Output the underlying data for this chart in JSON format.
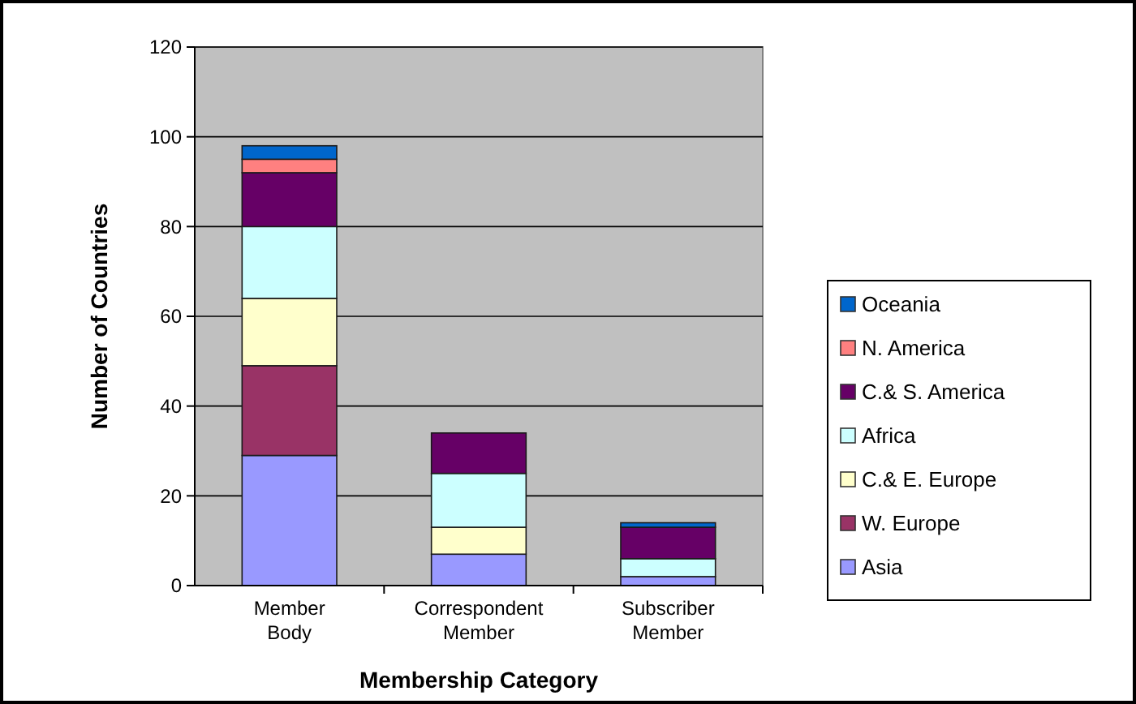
{
  "chart_data": {
    "type": "bar",
    "stacked": true,
    "xlabel": "Membership Category",
    "ylabel": "Number of Countries",
    "categories": [
      "Member Body",
      "Correspondent Member",
      "Subscriber Member"
    ],
    "series": [
      {
        "name": "Asia",
        "color": "#9999ff",
        "values": [
          29,
          7,
          2
        ]
      },
      {
        "name": "W. Europe",
        "color": "#993366",
        "values": [
          20,
          0,
          0
        ]
      },
      {
        "name": "C.& E. Europe",
        "color": "#ffffcc",
        "values": [
          15,
          6,
          0
        ]
      },
      {
        "name": "Africa",
        "color": "#ccffff",
        "values": [
          16,
          12,
          4
        ]
      },
      {
        "name": "C.& S. America",
        "color": "#660066",
        "values": [
          12,
          9,
          7
        ]
      },
      {
        "name": "N. America",
        "color": "#ff8080",
        "values": [
          3,
          0,
          0
        ]
      },
      {
        "name": "Oceania",
        "color": "#0066cc",
        "values": [
          3,
          0,
          1
        ]
      }
    ],
    "ylim": [
      0,
      120
    ],
    "yticks": [
      0,
      20,
      40,
      60,
      80,
      100,
      120
    ],
    "grid": "y",
    "legend": "right"
  }
}
